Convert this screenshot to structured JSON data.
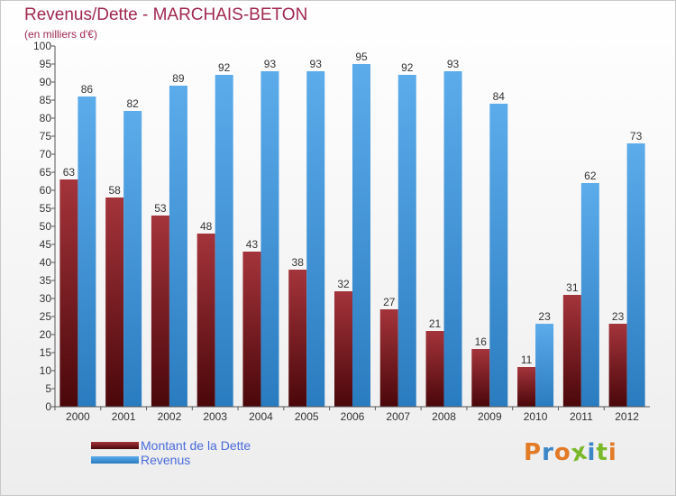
{
  "chart_data": {
    "type": "bar",
    "title": "Revenus/Dette - MARCHAIS-BETON",
    "subtitle": "(en milliers d'€)",
    "categories": [
      "2000",
      "2001",
      "2002",
      "2003",
      "2004",
      "2005",
      "2006",
      "2007",
      "2008",
      "2009",
      "2010",
      "2011",
      "2012"
    ],
    "series": [
      {
        "name": "Montant de la Dette",
        "color": "#7b1418",
        "values": [
          63,
          58,
          53,
          48,
          43,
          38,
          32,
          27,
          21,
          16,
          11,
          31,
          23
        ]
      },
      {
        "name": "Revenus",
        "color": "#3d97dc",
        "values": [
          86,
          82,
          89,
          92,
          93,
          93,
          95,
          92,
          93,
          84,
          23,
          62,
          73
        ]
      }
    ],
    "ylim": [
      0,
      100
    ],
    "yticks": [
      0,
      5,
      10,
      15,
      20,
      25,
      30,
      35,
      40,
      45,
      50,
      55,
      60,
      65,
      70,
      75,
      80,
      85,
      90,
      95,
      100
    ],
    "grid": false,
    "legend_position": "bottom-left"
  },
  "brand": {
    "text": "Proxiti",
    "colors": [
      "#e27a26",
      "#3b86c7",
      "#e27a26",
      "#79b829",
      "#3b86c7",
      "#79b829",
      "#e27a26"
    ]
  }
}
